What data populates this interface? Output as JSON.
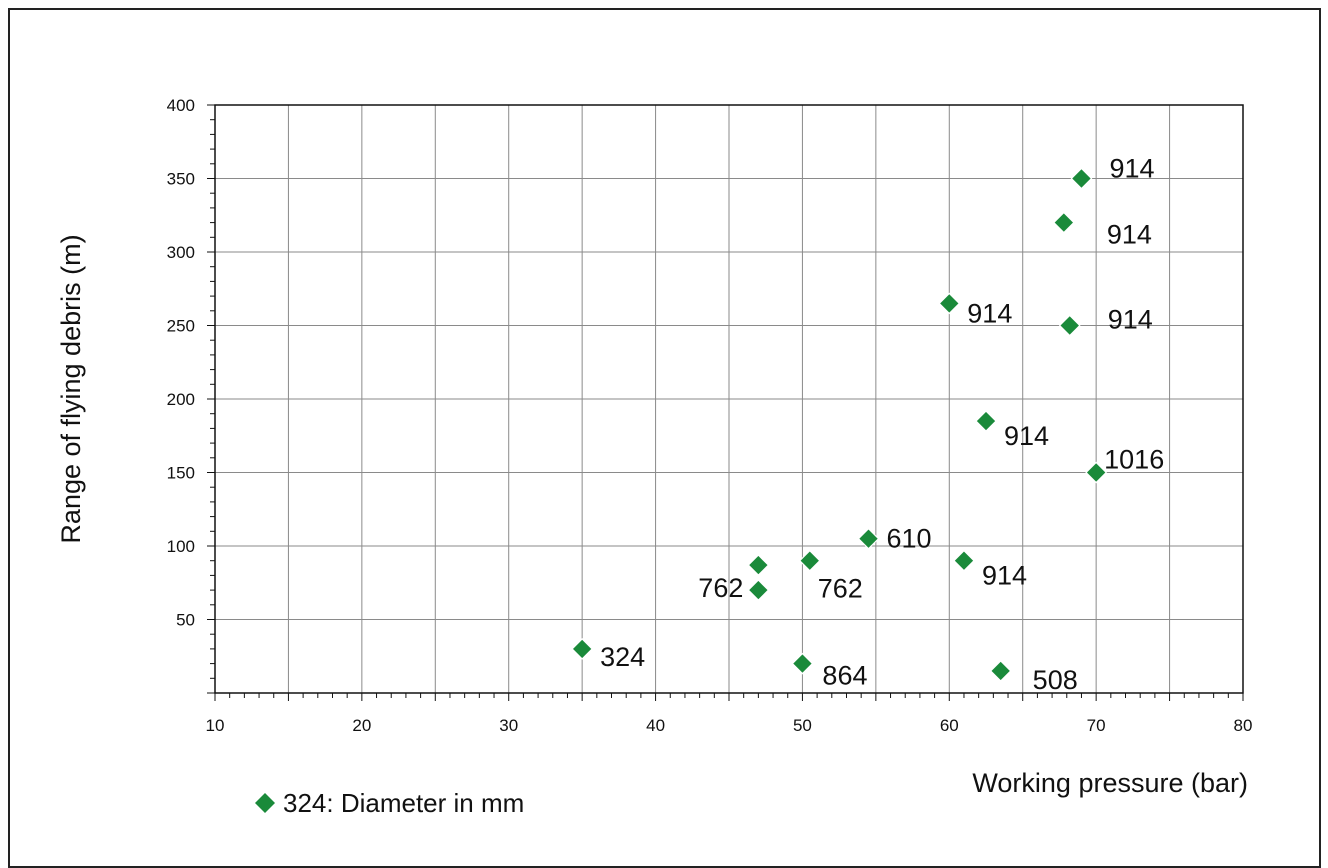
{
  "chart_data": {
    "type": "scatter",
    "xlabel": "Working pressure (bar)",
    "ylabel": "Range of flying debris (m)",
    "xlim": [
      10,
      80
    ],
    "ylim": [
      0,
      400
    ],
    "x_ticks": [
      10,
      20,
      30,
      40,
      50,
      60,
      70,
      80
    ],
    "y_ticks": [
      50,
      100,
      150,
      200,
      250,
      300,
      350,
      400
    ],
    "grid": true,
    "marker": "diamond",
    "marker_color": "#1a8a3a",
    "legend": {
      "position": "bottom-left",
      "label": "324: Diameter in mm"
    },
    "points": [
      {
        "x": 69.0,
        "y": 350,
        "label": "914"
      },
      {
        "x": 67.8,
        "y": 320,
        "label": "914"
      },
      {
        "x": 60.0,
        "y": 265,
        "label": "914"
      },
      {
        "x": 68.2,
        "y": 250,
        "label": "914"
      },
      {
        "x": 62.5,
        "y": 185,
        "label": "914"
      },
      {
        "x": 70.0,
        "y": 150,
        "label": "1016"
      },
      {
        "x": 54.5,
        "y": 105,
        "label": "610"
      },
      {
        "x": 50.5,
        "y": 90,
        "label": "762"
      },
      {
        "x": 47.0,
        "y": 87,
        "label": "762"
      },
      {
        "x": 47.0,
        "y": 70,
        "label": ""
      },
      {
        "x": 61.0,
        "y": 90,
        "label": "914"
      },
      {
        "x": 35.0,
        "y": 30,
        "label": "324"
      },
      {
        "x": 50.0,
        "y": 20,
        "label": "864"
      },
      {
        "x": 63.5,
        "y": 15,
        "label": "508"
      }
    ]
  }
}
